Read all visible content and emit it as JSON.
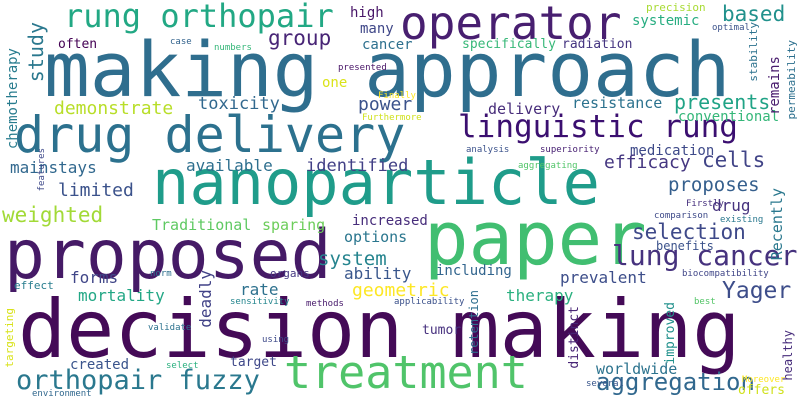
{
  "words": [
    {
      "text": "making approach",
      "color": "#2f6e8e"
    },
    {
      "text": "decision making",
      "color": "#440a57"
    },
    {
      "text": "nanoparticle",
      "color": "#1f9c8a"
    },
    {
      "text": "proposed",
      "color": "#451a66"
    },
    {
      "text": "paper",
      "color": "#41be71"
    },
    {
      "text": "drug delivery",
      "color": "#2c718e"
    },
    {
      "text": "treatment",
      "color": "#50c46a"
    },
    {
      "text": "operator",
      "color": "#481f70"
    },
    {
      "text": "linguistic rung",
      "color": "#3b0f70"
    },
    {
      "text": "rung orthopair",
      "color": "#22a884"
    },
    {
      "text": "lung cancer",
      "color": "#46327e"
    },
    {
      "text": "orthopair fuzzy",
      "color": "#2a788e"
    },
    {
      "text": "aggregation",
      "color": "#31688e"
    },
    {
      "text": "Yager",
      "color": "#3d4d8a"
    },
    {
      "text": "group",
      "color": "#482576"
    },
    {
      "text": "based",
      "color": "#21918c"
    },
    {
      "text": "study",
      "color": "#2a788e"
    },
    {
      "text": "chemotherapy",
      "color": "#287c8e"
    },
    {
      "text": "demonstrate",
      "color": "#b8de29"
    },
    {
      "text": "toxicity",
      "color": "#31688e"
    },
    {
      "text": "power",
      "color": "#3b528b"
    },
    {
      "text": "delivery",
      "color": "#472c7a"
    },
    {
      "text": "resistance",
      "color": "#2c728e"
    },
    {
      "text": "presents",
      "color": "#20a386"
    },
    {
      "text": "conventional",
      "color": "#35b779"
    },
    {
      "text": "medication",
      "color": "#3e4a89"
    },
    {
      "text": "efficacy",
      "color": "#453781"
    },
    {
      "text": "cells",
      "color": "#414487"
    },
    {
      "text": "proposes",
      "color": "#355f8d"
    },
    {
      "text": "selection",
      "color": "#3e4989"
    },
    {
      "text": "limited",
      "color": "#3b528b"
    },
    {
      "text": "mainstays",
      "color": "#31688e"
    },
    {
      "text": "available",
      "color": "#2e6f8e"
    },
    {
      "text": "identified",
      "color": "#424086"
    },
    {
      "text": "weighted",
      "color": "#a2da37"
    },
    {
      "text": "Traditional",
      "color": "#5ec962"
    },
    {
      "text": "sparing",
      "color": "#6ccd5a"
    },
    {
      "text": "drug",
      "color": "#46337e"
    },
    {
      "text": "increased",
      "color": "#472d7b"
    },
    {
      "text": "system",
      "color": "#25848e"
    },
    {
      "text": "options",
      "color": "#2a768e"
    },
    {
      "text": "benefits",
      "color": "#3b528b"
    },
    {
      "text": "forms",
      "color": "#404688"
    },
    {
      "text": "ability",
      "color": "#39568c"
    },
    {
      "text": "including",
      "color": "#32658e"
    },
    {
      "text": "prevalent",
      "color": "#3d4e8a"
    },
    {
      "text": "mortality",
      "color": "#22a785"
    },
    {
      "text": "rate",
      "color": "#2d718e"
    },
    {
      "text": "geometric",
      "color": "#fde725"
    },
    {
      "text": "therapy",
      "color": "#2ab07f"
    },
    {
      "text": "deadly",
      "color": "#414287"
    },
    {
      "text": "worldwide",
      "color": "#2c738e"
    },
    {
      "text": "created",
      "color": "#3a548c"
    },
    {
      "text": "target",
      "color": "#3f4889"
    },
    {
      "text": "tumor",
      "color": "#46307e"
    },
    {
      "text": "retention",
      "color": "#2e6e8e"
    },
    {
      "text": "distinct",
      "color": "#482576"
    },
    {
      "text": "improved",
      "color": "#21918c"
    },
    {
      "text": "offers",
      "color": "#d0e11c"
    },
    {
      "text": "healthy",
      "color": "#472d7b"
    },
    {
      "text": "Recently",
      "color": "#2a788e"
    },
    {
      "text": "remains",
      "color": "#481b6d"
    },
    {
      "text": "permeability",
      "color": "#2d708e"
    },
    {
      "text": "stability",
      "color": "#2c728e"
    },
    {
      "text": "high",
      "color": "#481668"
    },
    {
      "text": "many",
      "color": "#3f4788"
    },
    {
      "text": "cancer",
      "color": "#2d708e"
    },
    {
      "text": "often",
      "color": "#440154"
    },
    {
      "text": "one",
      "color": "#dae319"
    },
    {
      "text": "specifically",
      "color": "#37b878"
    },
    {
      "text": "radiation",
      "color": "#453581"
    },
    {
      "text": "systemic",
      "color": "#27ad81"
    },
    {
      "text": "precision",
      "color": "#a8db34"
    },
    {
      "text": "effect",
      "color": "#287d8e"
    },
    {
      "text": "targeting",
      "color": "#d8e219"
    },
    {
      "text": "organs",
      "color": "#453882"
    },
    {
      "text": "methods",
      "color": "#481a6c"
    },
    {
      "text": "validate",
      "color": "#2c728e"
    },
    {
      "text": "select",
      "color": "#2ab07f"
    },
    {
      "text": "using",
      "color": "#3e4a89"
    },
    {
      "text": "applicability",
      "color": "#3b518b"
    },
    {
      "text": "sensitivity",
      "color": "#24868e"
    },
    {
      "text": "norm",
      "color": "#2d708e"
    },
    {
      "text": "environment",
      "color": "#31688e"
    },
    {
      "text": "several",
      "color": "#39568c"
    },
    {
      "text": "Moreover",
      "color": "#fde725"
    },
    {
      "text": "biocompatibility",
      "color": "#404688"
    },
    {
      "text": "best",
      "color": "#54c568"
    },
    {
      "text": "comparison",
      "color": "#3e4a89"
    },
    {
      "text": "existing",
      "color": "#2a788e"
    },
    {
      "text": "Firstly",
      "color": "#46307e"
    },
    {
      "text": "superiority",
      "color": "#482173"
    },
    {
      "text": "analysis",
      "color": "#3b528b"
    },
    {
      "text": "aggregating",
      "color": "#52c569"
    },
    {
      "text": "Finally",
      "color": "#fde725"
    },
    {
      "text": "Furthermore",
      "color": "#d0e11c"
    },
    {
      "text": "features",
      "color": "#3e4989"
    },
    {
      "text": "presented",
      "color": "#481467"
    },
    {
      "text": "numbers",
      "color": "#35b779"
    },
    {
      "text": "case",
      "color": "#33638d"
    },
    {
      "text": "optimal",
      "color": "#3b528b"
    }
  ]
}
